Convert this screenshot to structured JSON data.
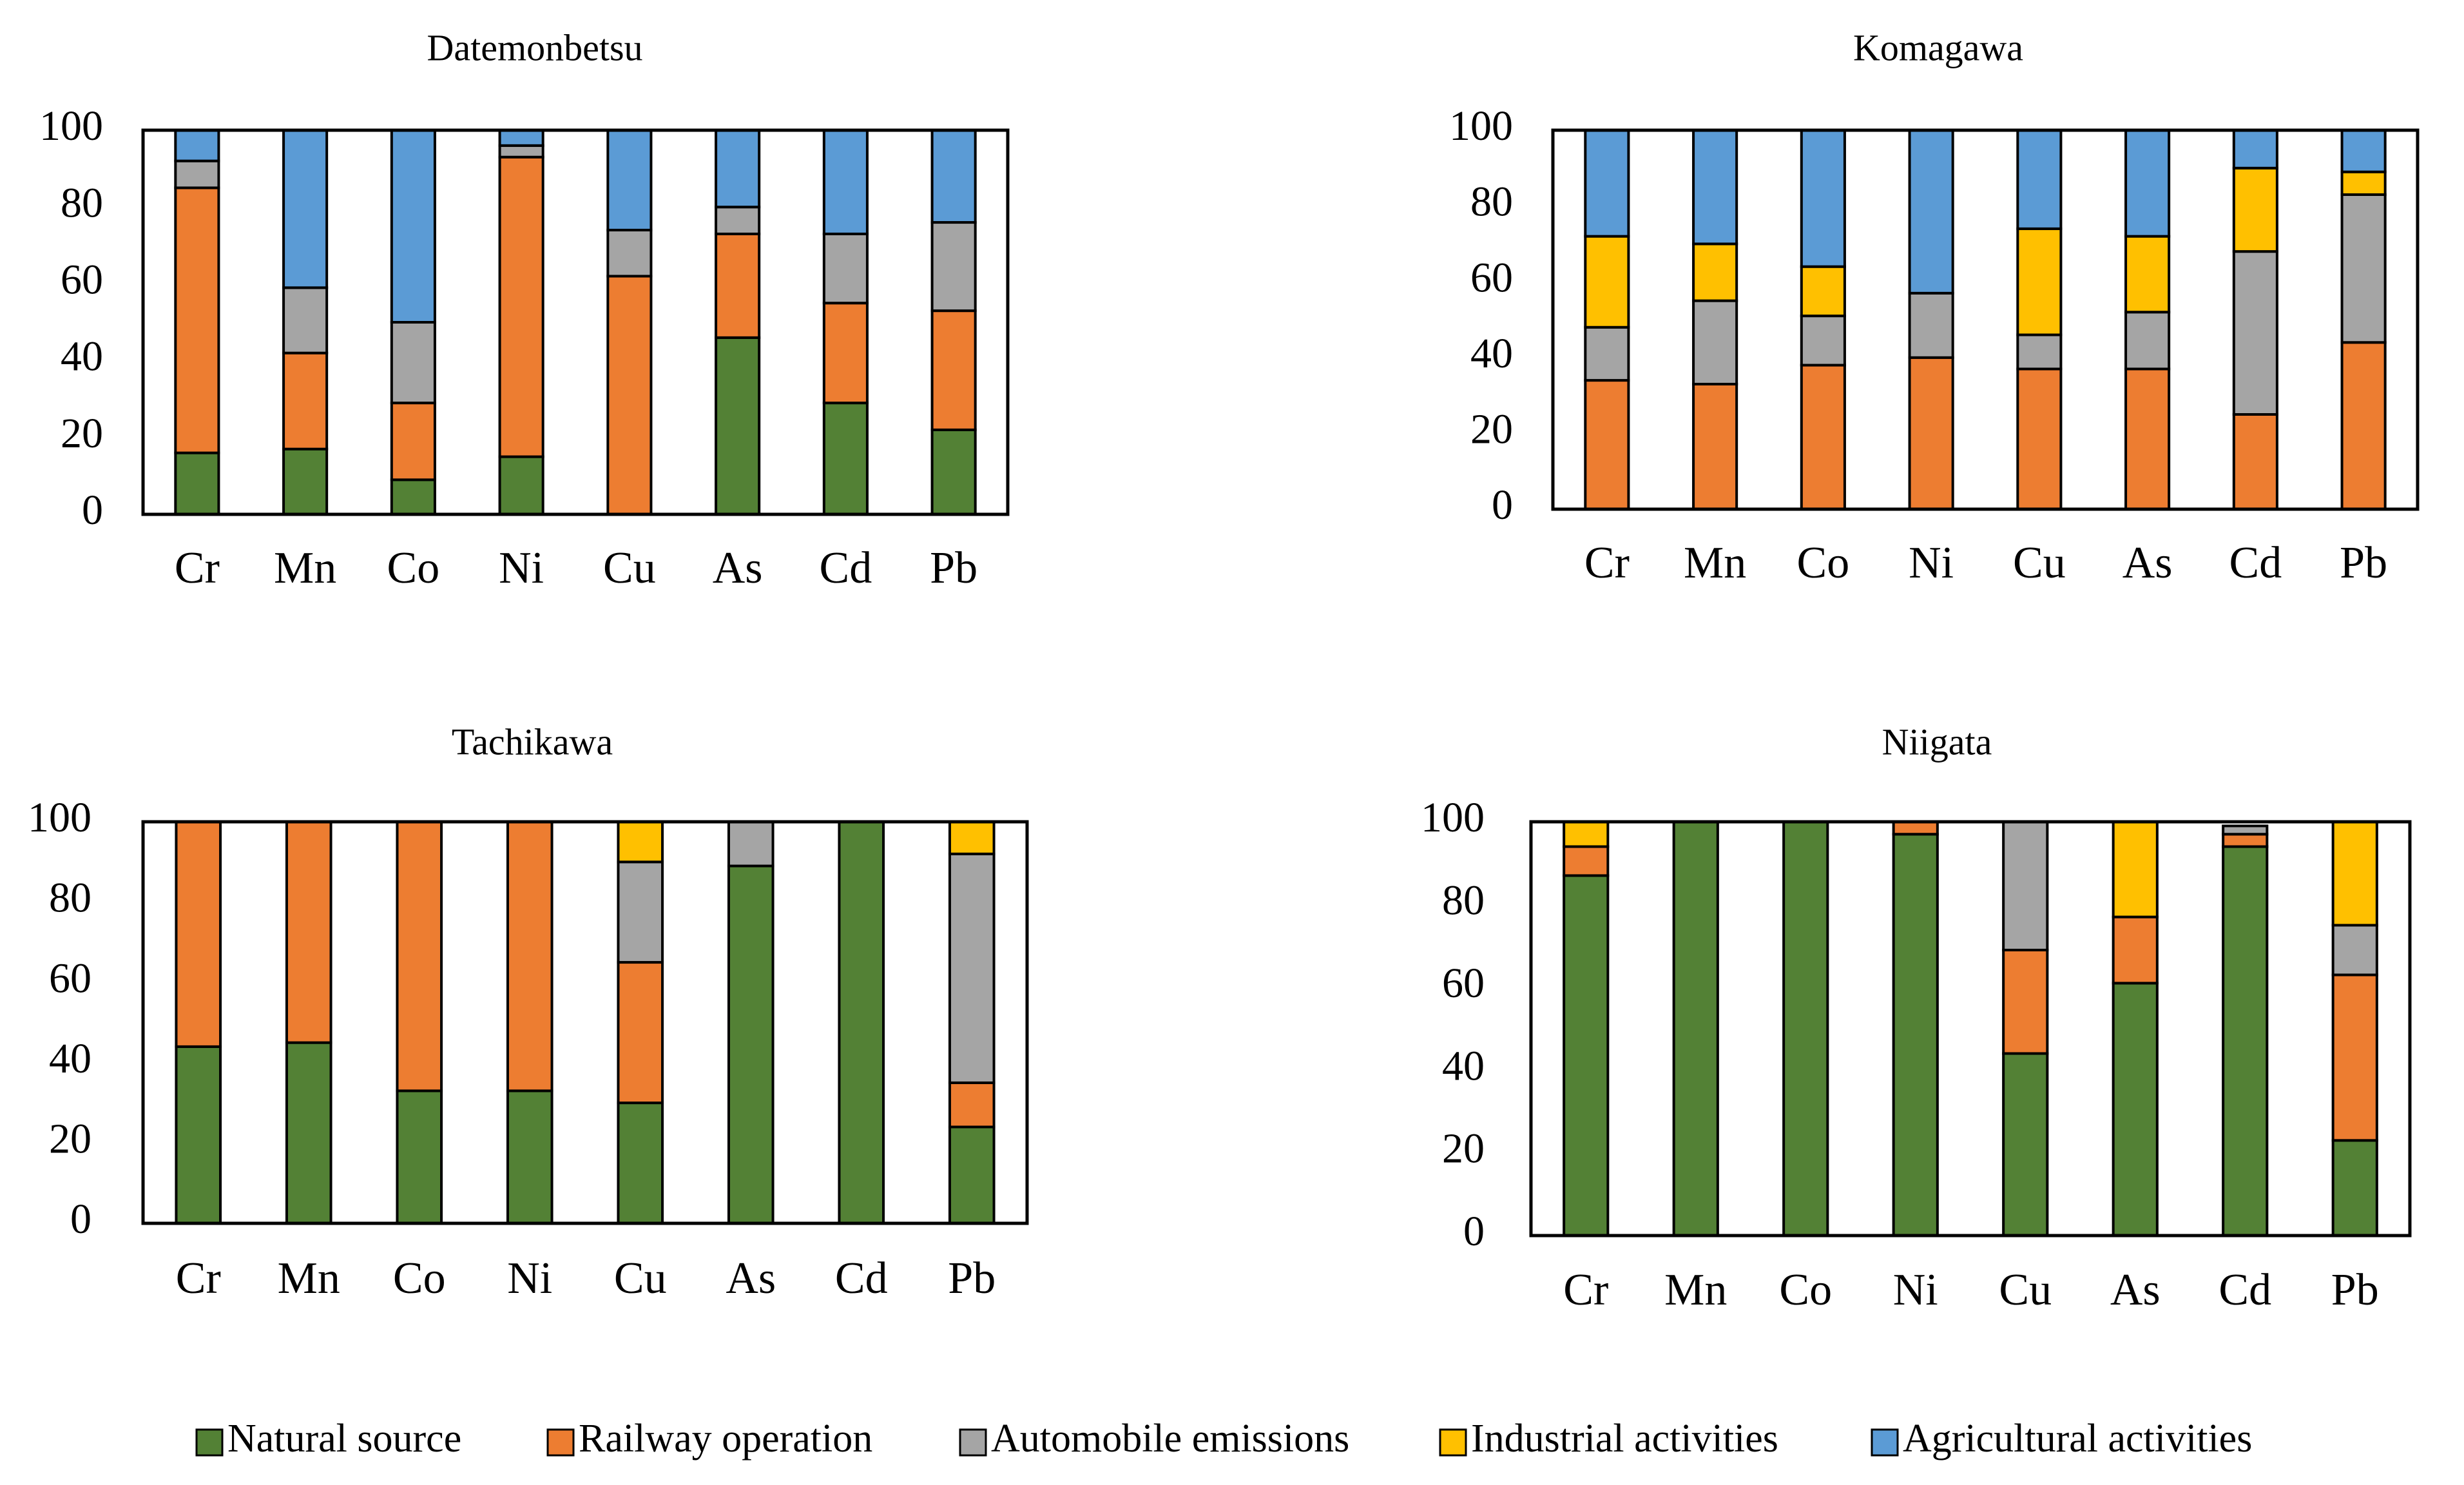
{
  "colors": {
    "natural": "#538135",
    "railway": "#ED7D31",
    "automobile": "#A5A5A5",
    "industrial": "#FFC000",
    "agricultural": "#5B9BD5"
  },
  "legend": [
    {
      "key": "natural",
      "label": "Natural source"
    },
    {
      "key": "railway",
      "label": "Railway operation"
    },
    {
      "key": "automobile",
      "label": "Automobile emissions"
    },
    {
      "key": "industrial",
      "label": "Industrial activities"
    },
    {
      "key": "agricultural",
      "label": "Agricultural activities"
    }
  ],
  "chart_data": [
    {
      "type": "bar",
      "stacked": true,
      "title": "Datemonbetsu",
      "categories": [
        "Cr",
        "Mn",
        "Co",
        "Ni",
        "Cu",
        "As",
        "Cd",
        "Pb"
      ],
      "ylim": [
        0,
        100
      ],
      "yticks": [
        "0",
        "20",
        "40",
        "60",
        "80",
        "100"
      ],
      "series": [
        {
          "name": "Natural source",
          "key": "natural",
          "values": [
            16,
            17,
            9,
            15,
            0,
            46,
            29,
            22
          ]
        },
        {
          "name": "Railway operation",
          "key": "railway",
          "values": [
            69,
            25,
            20,
            78,
            62,
            27,
            26,
            31
          ]
        },
        {
          "name": "Automobile emissions",
          "key": "automobile",
          "values": [
            7,
            17,
            21,
            3,
            12,
            7,
            18,
            23
          ]
        },
        {
          "name": "Industrial activities",
          "key": "industrial",
          "values": [
            0,
            0,
            0,
            0,
            0,
            0,
            0,
            0
          ]
        },
        {
          "name": "Agricultural activities",
          "key": "agricultural",
          "values": [
            8,
            41,
            50,
            4,
            26,
            20,
            27,
            24
          ]
        }
      ]
    },
    {
      "type": "bar",
      "stacked": true,
      "title": "Komagawa",
      "categories": [
        "Cr",
        "Mn",
        "Co",
        "Ni",
        "Cu",
        "As",
        "Cd",
        "Pb"
      ],
      "ylim": [
        0,
        100
      ],
      "yticks": [
        "0",
        "20",
        "40",
        "60",
        "80",
        "100"
      ],
      "series": [
        {
          "name": "Natural source",
          "key": "natural",
          "values": [
            0,
            0,
            0,
            0,
            0,
            0,
            0,
            0
          ]
        },
        {
          "name": "Railway operation",
          "key": "railway",
          "values": [
            34,
            33,
            38,
            40,
            37,
            37,
            25,
            44
          ]
        },
        {
          "name": "Automobile emissions",
          "key": "automobile",
          "values": [
            14,
            22,
            13,
            17,
            9,
            15,
            43,
            39
          ]
        },
        {
          "name": "Industrial activities",
          "key": "industrial",
          "values": [
            24,
            15,
            13,
            0,
            28,
            20,
            22,
            6
          ]
        },
        {
          "name": "Agricultural activities",
          "key": "agricultural",
          "values": [
            28,
            30,
            36,
            43,
            26,
            28,
            10,
            11
          ]
        }
      ]
    },
    {
      "type": "bar",
      "stacked": true,
      "title": "Tachikawa",
      "categories": [
        "Cr",
        "Mn",
        "Co",
        "Ni",
        "Cu",
        "As",
        "Cd",
        "Pb"
      ],
      "ylim": [
        0,
        100
      ],
      "yticks": [
        "0",
        "20",
        "40",
        "60",
        "80",
        "100"
      ],
      "series": [
        {
          "name": "Natural source",
          "key": "natural",
          "values": [
            44,
            45,
            33,
            33,
            30,
            89,
            100,
            24
          ]
        },
        {
          "name": "Railway operation",
          "key": "railway",
          "values": [
            56,
            55,
            67,
            67,
            35,
            0,
            0,
            11
          ]
        },
        {
          "name": "Automobile emissions",
          "key": "automobile",
          "values": [
            0,
            0,
            0,
            0,
            25,
            11,
            0,
            57
          ]
        },
        {
          "name": "Industrial activities",
          "key": "industrial",
          "values": [
            0,
            0,
            0,
            0,
            10,
            0,
            0,
            8
          ]
        },
        {
          "name": "Agricultural activities",
          "key": "agricultural",
          "values": [
            0,
            0,
            0,
            0,
            0,
            0,
            0,
            0
          ]
        }
      ]
    },
    {
      "type": "bar",
      "stacked": true,
      "title": "Niigata",
      "categories": [
        "Cr",
        "Mn",
        "Co",
        "Ni",
        "Cu",
        "As",
        "Cd",
        "Pb"
      ],
      "ylim": [
        0,
        100
      ],
      "yticks": [
        "0",
        "20",
        "40",
        "60",
        "80",
        "100"
      ],
      "series": [
        {
          "name": "Natural source",
          "key": "natural",
          "values": [
            87,
            100,
            100,
            97,
            44,
            61,
            94,
            23
          ]
        },
        {
          "name": "Railway operation",
          "key": "railway",
          "values": [
            7,
            0,
            0,
            3,
            25,
            16,
            3,
            40
          ]
        },
        {
          "name": "Automobile emissions",
          "key": "automobile",
          "values": [
            0,
            0,
            0,
            0,
            31,
            0,
            2,
            12
          ]
        },
        {
          "name": "Industrial activities",
          "key": "industrial",
          "values": [
            6,
            0,
            0,
            0,
            0,
            23,
            0,
            25
          ]
        },
        {
          "name": "Agricultural activities",
          "key": "agricultural",
          "values": [
            0,
            0,
            0,
            0,
            0,
            0,
            0,
            0
          ]
        }
      ]
    }
  ]
}
